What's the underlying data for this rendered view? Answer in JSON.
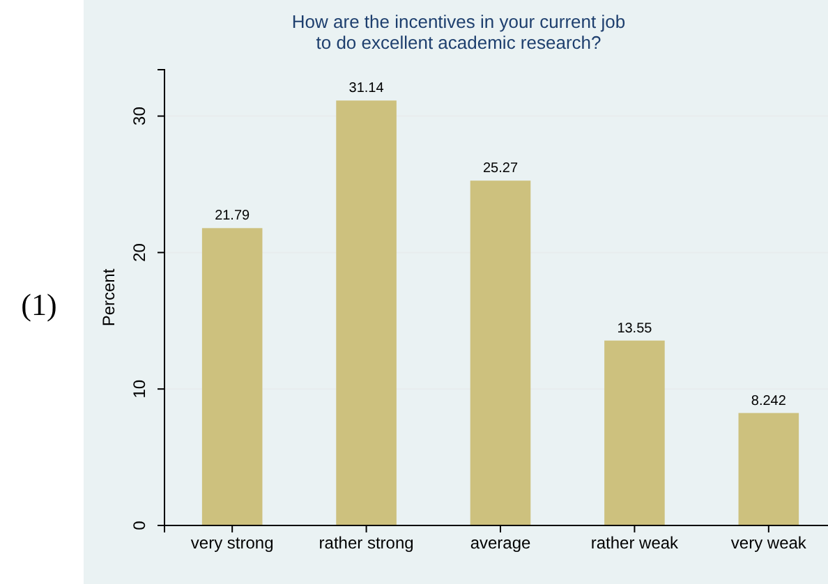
{
  "chart_data": {
    "type": "bar",
    "title": "How are the incentives in your current job\nto do excellent academic research?",
    "ylabel": "Percent",
    "categories": [
      "very strong",
      "rather strong",
      "average",
      "rather weak",
      "very weak"
    ],
    "values": [
      21.79,
      31.14,
      25.27,
      13.55,
      8.242
    ],
    "color": "#cdc17e",
    "ylim": [
      0,
      33.4
    ],
    "yticks": [
      0,
      10,
      20,
      30
    ],
    "grid": "y",
    "data_labels": true,
    "annotations": [
      "(1)"
    ]
  }
}
